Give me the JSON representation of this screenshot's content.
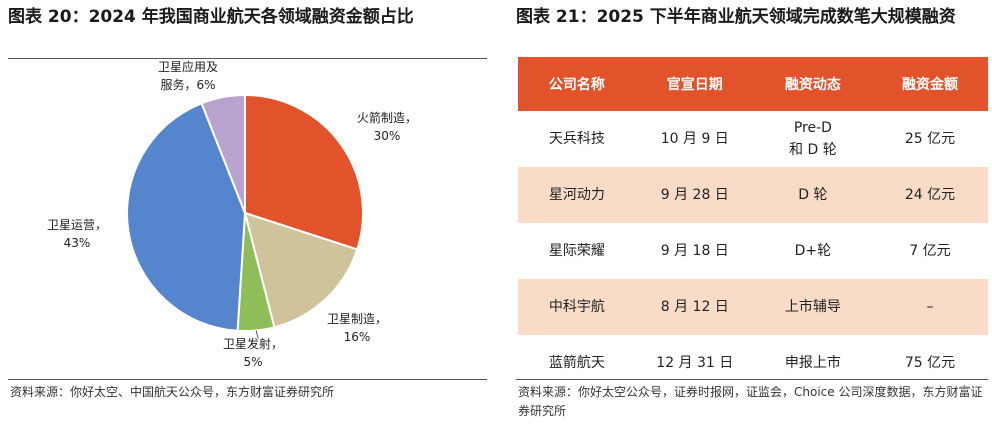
{
  "left_panel": {
    "title": "图表 20：2024 年我国商业航天各领域融资金额占比",
    "source": "资料来源：你好太空、中国航天公众号，东方财富证券研究所",
    "chart_data": {
      "type": "pie",
      "slices": [
        {
          "label": "火箭制造，",
          "value": 30,
          "value_label": "30%",
          "color": "#e2522b"
        },
        {
          "label": "卫星制造，",
          "value": 16,
          "value_label": "16%",
          "color": "#d0c39c"
        },
        {
          "label": "卫星发射，",
          "value": 5,
          "value_label": "5%",
          "color": "#8fbe58"
        },
        {
          "label": "卫星运营，",
          "value": 43,
          "value_label": "43%",
          "color": "#5585cc"
        },
        {
          "label": "卫星应用及\n服务，",
          "value": 6,
          "value_label": "6%",
          "color": "#b7a3cd"
        }
      ]
    }
  },
  "right_panel": {
    "title": "图表 21：2025 下半年商业航天领域完成数笔大规模融资",
    "table": {
      "headers": [
        "公司名称",
        "官宣日期",
        "融资动态",
        "融资金额"
      ],
      "rows": [
        [
          "天兵科技",
          "10 月 9 日",
          "Pre-D\n和 D 轮",
          "25 亿元"
        ],
        [
          "星河动力",
          "9 月 28 日",
          "D 轮",
          "24 亿元"
        ],
        [
          "星际荣耀",
          "9 月 18 日",
          "D+轮",
          "7 亿元"
        ],
        [
          "中科宇航",
          "8 月 12 日",
          "上市辅导",
          "–"
        ],
        [
          "蓝箭航天",
          "12 月 31 日",
          "申报上市",
          "75 亿元"
        ]
      ]
    },
    "source": "资料来源：你好太空公众号，证券时报网，证监会，Choice 公司深度数据，东方财富证券研究所"
  }
}
